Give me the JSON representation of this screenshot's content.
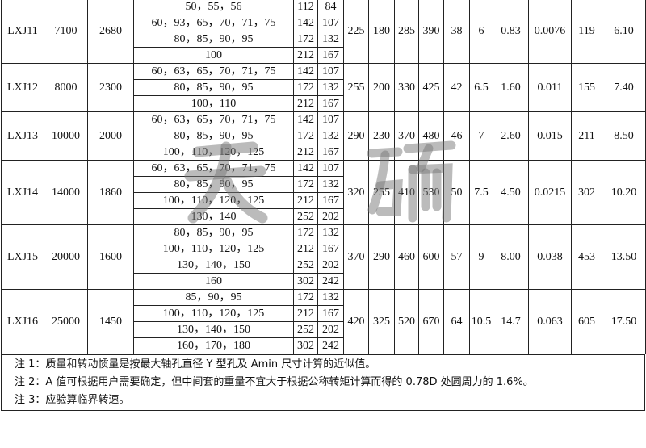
{
  "watermark": [
    "天",
    "硕"
  ],
  "models": [
    {
      "model": "LXJ11",
      "torque": "7100",
      "speed": "2680",
      "bores": [
        [
          "50，55，56",
          "112",
          "84"
        ],
        [
          "60，93，65，70，71，75",
          "142",
          "107"
        ],
        [
          "80，85，90，95",
          "172",
          "132"
        ],
        [
          "100",
          "212",
          "167"
        ]
      ],
      "dims": [
        "225",
        "180",
        "285",
        "390",
        "38",
        "6",
        "0.83",
        "0.0076",
        "119",
        "6.10"
      ]
    },
    {
      "model": "LXJ12",
      "torque": "8000",
      "speed": "2300",
      "bores": [
        [
          "60，63，65，70，71，75",
          "142",
          "107"
        ],
        [
          "80，85，90，95",
          "172",
          "132"
        ],
        [
          "100，110",
          "212",
          "167"
        ]
      ],
      "dims": [
        "255",
        "200",
        "330",
        "425",
        "42",
        "6.5",
        "1.60",
        "0.011",
        "155",
        "7.40"
      ]
    },
    {
      "model": "LXJ13",
      "torque": "10000",
      "speed": "2000",
      "bores": [
        [
          "60，63，65，70，71，75",
          "142",
          "107"
        ],
        [
          "80，85，90，95",
          "172",
          "132"
        ],
        [
          "100，110，120，125",
          "212",
          "167"
        ]
      ],
      "dims": [
        "290",
        "230",
        "370",
        "480",
        "46",
        "7",
        "2.60",
        "0.015",
        "211",
        "8.50"
      ]
    },
    {
      "model": "LXJ14",
      "torque": "14000",
      "speed": "1860",
      "bores": [
        [
          "60，63，65，70，71，75",
          "142",
          "107"
        ],
        [
          "80，85，90，95",
          "172",
          "132"
        ],
        [
          "100，110，120，125",
          "212",
          "167"
        ],
        [
          "130，140",
          "252",
          "202"
        ]
      ],
      "dims": [
        "320",
        "255",
        "410",
        "530",
        "50",
        "7.5",
        "4.50",
        "0.0215",
        "302",
        "10.20"
      ]
    },
    {
      "model": "LXJ15",
      "torque": "20000",
      "speed": "1600",
      "bores": [
        [
          "80，85，90，95",
          "172",
          "132"
        ],
        [
          "100，110，120，125",
          "212",
          "167"
        ],
        [
          "130，140，150",
          "252",
          "202"
        ],
        [
          "160",
          "302",
          "242"
        ]
      ],
      "dims": [
        "370",
        "290",
        "460",
        "600",
        "57",
        "9",
        "8.00",
        "0.038",
        "453",
        "13.50"
      ]
    },
    {
      "model": "LXJ16",
      "torque": "25000",
      "speed": "1450",
      "bores": [
        [
          "85，90，95",
          "172",
          "132"
        ],
        [
          "100，110，120，125",
          "212",
          "167"
        ],
        [
          "130，140，150",
          "252",
          "202"
        ],
        [
          "160，170，180",
          "302",
          "242"
        ]
      ],
      "dims": [
        "420",
        "325",
        "520",
        "670",
        "64",
        "10.5",
        "14.7",
        "0.063",
        "605",
        "17.50"
      ]
    }
  ],
  "notes": [
    "注 1：质量和转动惯量是按最大轴孔直径 Y 型孔及 Amin 尺寸计算的近似值。",
    "注 2：A 值可根据用户需要确定，但中间套的重量不宜大于根据公称转矩计算而得的 0.78D 处圆周力的 1.6%。",
    "注 3：应验算临界转速。"
  ]
}
